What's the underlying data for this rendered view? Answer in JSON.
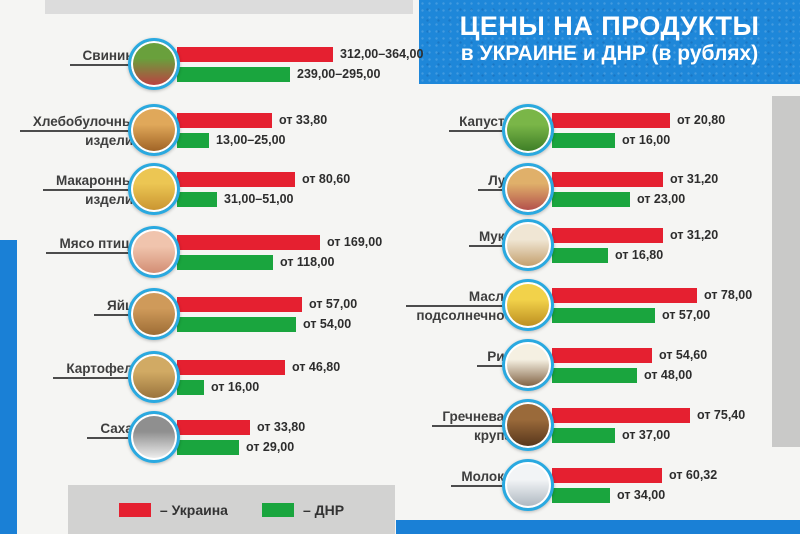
{
  "title": {
    "line1": "ЦЕНЫ НА ПРОДУКТЫ",
    "line2": "в УКРАИНЕ и ДНР (в рублях)"
  },
  "legend": {
    "ukraine": "– Украина",
    "dnr": "– ДНР",
    "position": "bottom-left"
  },
  "colors": {
    "ukraine_red": "#e52030",
    "dnr_green": "#1aa53e",
    "banner_blue": "#1e87d9",
    "stripe_blue": "#1a80d6",
    "icon_ring_blue": "#2aa9e0",
    "legend_gray": "#d2d2d1",
    "text_dark": "#3e3e3e"
  },
  "chart_data": {
    "type": "bar",
    "orientation": "horizontal",
    "title": "ЦЕНЫ НА ПРОДУКТЫ в УКРАИНЕ и ДНР (в рублях)",
    "unit": "руб.",
    "series_names": [
      "Украина",
      "ДНР"
    ],
    "legend_position": "bottom-left",
    "columns": [
      {
        "side": "left",
        "items": [
          {
            "label_lines": [
              "Свинина"
            ],
            "icon": "pork-icon",
            "icon_colors": [
              "#69a03c",
              "#c23a42"
            ],
            "ukraine": "312,00–364,00",
            "dnr": "239,00–295,00",
            "ukraine_min": 312.0,
            "ukraine_max": 364.0,
            "dnr_min": 239.0,
            "dnr_max": 295.0,
            "u_w": 156,
            "d_w": 113
          },
          {
            "label_lines": [
              "Хлебобулочные",
              "изделия"
            ],
            "icon": "bread-icon",
            "icon_colors": [
              "#e0a85a",
              "#9c5f22"
            ],
            "ukraine": "от 33,80",
            "dnr": "13,00–25,00",
            "ukraine_min": 33.8,
            "dnr_min": 13.0,
            "dnr_max": 25.0,
            "u_w": 95,
            "d_w": 32
          },
          {
            "label_lines": [
              "Макаронные",
              "изделия"
            ],
            "icon": "pasta-icon",
            "icon_colors": [
              "#ecc653",
              "#c8922f"
            ],
            "ukraine": "от 80,60",
            "dnr": "31,00–51,00",
            "ukraine_min": 80.6,
            "dnr_min": 31.0,
            "dnr_max": 51.0,
            "u_w": 118,
            "d_w": 40
          },
          {
            "label_lines": [
              "Мясо птицы"
            ],
            "icon": "poultry-icon",
            "icon_colors": [
              "#f0c4ad",
              "#d18a70"
            ],
            "ukraine": "от 169,00",
            "dnr": "от 118,00",
            "ukraine_min": 169.0,
            "dnr_min": 118.0,
            "u_w": 143,
            "d_w": 96
          },
          {
            "label_lines": [
              "Яйца"
            ],
            "icon": "eggs-icon",
            "icon_colors": [
              "#cf9a5a",
              "#9a6a33"
            ],
            "ukraine": "от 57,00",
            "dnr": "от 54,00",
            "ukraine_min": 57.0,
            "dnr_min": 54.0,
            "u_w": 125,
            "d_w": 119
          },
          {
            "label_lines": [
              "Картофель"
            ],
            "icon": "potato-icon",
            "icon_colors": [
              "#d1aa64",
              "#97703a"
            ],
            "ukraine": "от 46,80",
            "dnr": "от 16,00",
            "ukraine_min": 46.8,
            "dnr_min": 16.0,
            "u_w": 108,
            "d_w": 27
          },
          {
            "label_lines": [
              "Сахар"
            ],
            "icon": "sugar-icon",
            "icon_colors": [
              "#8f8f8f",
              "#f4f4f4"
            ],
            "ukraine": "от 33,80",
            "dnr": "от 29,00",
            "ukraine_min": 33.8,
            "dnr_min": 29.0,
            "u_w": 73,
            "d_w": 62
          }
        ]
      },
      {
        "side": "right",
        "items": [
          {
            "label_lines": [
              "Капуста"
            ],
            "icon": "cabbage-icon",
            "icon_colors": [
              "#7ab648",
              "#3a7a24"
            ],
            "ukraine": "от 20,80",
            "dnr": "от 16,00",
            "ukraine_min": 20.8,
            "dnr_min": 16.0,
            "u_w": 118,
            "d_w": 63
          },
          {
            "label_lines": [
              "Лук"
            ],
            "icon": "onion-icon",
            "icon_colors": [
              "#e0b06a",
              "#b04a4a"
            ],
            "ukraine": "от 31,20",
            "dnr": "от 23,00",
            "ukraine_min": 31.2,
            "dnr_min": 23.0,
            "u_w": 111,
            "d_w": 78
          },
          {
            "label_lines": [
              "Мука"
            ],
            "icon": "flour-icon",
            "icon_colors": [
              "#f0e6d4",
              "#c09a66"
            ],
            "ukraine": "от 31,20",
            "dnr": "от 16,80",
            "ukraine_min": 31.2,
            "dnr_min": 16.8,
            "u_w": 111,
            "d_w": 56
          },
          {
            "label_lines": [
              "Масло",
              "подсолнечное"
            ],
            "icon": "sunflower-oil-icon",
            "icon_colors": [
              "#f2d24a",
              "#b98a1e"
            ],
            "ukraine": "от 78,00",
            "dnr": "от 57,00",
            "ukraine_min": 78.0,
            "dnr_min": 57.0,
            "u_w": 145,
            "d_w": 103
          },
          {
            "label_lines": [
              "Рис"
            ],
            "icon": "rice-icon",
            "icon_colors": [
              "#f5f0e2",
              "#7a5a3a"
            ],
            "ukraine": "от 54,60",
            "dnr": "от 48,00",
            "ukraine_min": 54.6,
            "dnr_min": 48.0,
            "u_w": 100,
            "d_w": 85
          },
          {
            "label_lines": [
              "Гречневая",
              "крупа"
            ],
            "icon": "buckwheat-icon",
            "icon_colors": [
              "#9a6a3a",
              "#53331a"
            ],
            "ukraine": "от 75,40",
            "dnr": "от 37,00",
            "ukraine_min": 75.4,
            "dnr_min": 37.0,
            "u_w": 138,
            "d_w": 63
          },
          {
            "label_lines": [
              "Молоко"
            ],
            "icon": "milk-icon",
            "icon_colors": [
              "#f2f4f6",
              "#aab4bd"
            ],
            "ukraine": "от 60,32",
            "dnr": "от 34,00",
            "ukraine_min": 60.32,
            "dnr_min": 34.0,
            "u_w": 110,
            "d_w": 58
          }
        ]
      }
    ]
  }
}
